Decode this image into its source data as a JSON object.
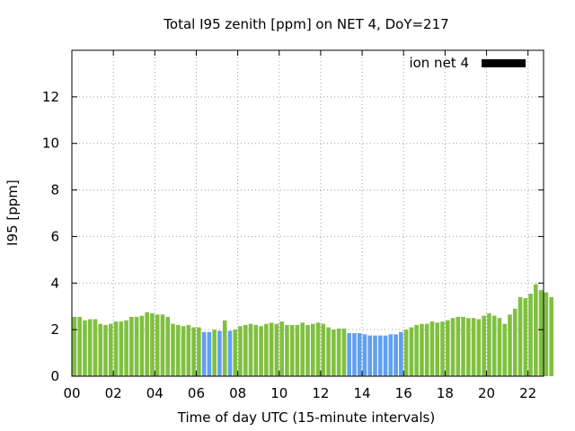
{
  "chart_data": {
    "type": "bar",
    "title": "Total I95 zenith [ppm] on NET 4, DoY=217",
    "xlabel": "Time of day UTC (15-minute intervals)",
    "ylabel": "I95 [ppm]",
    "interval_hours": 0.25,
    "xlim": [
      0,
      22.75
    ],
    "ylim": [
      0,
      14
    ],
    "x_ticks": [
      0,
      2,
      4,
      6,
      8,
      10,
      12,
      14,
      16,
      18,
      20,
      22
    ],
    "x_tick_labels": [
      "00",
      "02",
      "04",
      "06",
      "08",
      "10",
      "12",
      "14",
      "16",
      "18",
      "20",
      "22"
    ],
    "y_ticks": [
      0,
      2,
      4,
      6,
      8,
      10,
      12
    ],
    "y_tick_labels": [
      "0",
      "2",
      "4",
      "6",
      "8",
      "10",
      "12"
    ],
    "grid": true,
    "legend": {
      "label": "ion net 4",
      "placement": "top-right",
      "swatch_color": "#000000"
    },
    "colors": {
      "normal": "#80c040",
      "highlight": "#60a0ee"
    },
    "values": [
      2.55,
      2.55,
      2.4,
      2.45,
      2.45,
      2.25,
      2.2,
      2.25,
      2.35,
      2.35,
      2.4,
      2.55,
      2.55,
      2.6,
      2.75,
      2.7,
      2.65,
      2.65,
      2.55,
      2.25,
      2.2,
      2.15,
      2.2,
      2.1,
      2.1,
      1.9,
      1.9,
      2.0,
      1.95,
      2.4,
      1.95,
      2.0,
      2.15,
      2.2,
      2.25,
      2.2,
      2.15,
      2.25,
      2.3,
      2.25,
      2.35,
      2.2,
      2.2,
      2.2,
      2.3,
      2.2,
      2.25,
      2.3,
      2.25,
      2.1,
      2.0,
      2.05,
      2.05,
      1.85,
      1.85,
      1.85,
      1.8,
      1.75,
      1.75,
      1.75,
      1.75,
      1.8,
      1.8,
      1.9,
      2.0,
      2.1,
      2.2,
      2.25,
      2.25,
      2.35,
      2.3,
      2.35,
      2.4,
      2.5,
      2.55,
      2.55,
      2.5,
      2.5,
      2.45,
      2.6,
      2.7,
      2.6,
      2.5,
      2.25,
      2.65,
      2.9,
      3.4,
      3.35,
      3.55,
      3.95,
      3.7,
      3.6,
      3.4
    ],
    "highlight_flags": [
      0,
      0,
      0,
      0,
      0,
      0,
      0,
      0,
      0,
      0,
      0,
      0,
      0,
      0,
      0,
      0,
      0,
      0,
      0,
      0,
      0,
      0,
      0,
      0,
      0,
      1,
      1,
      0,
      1,
      0,
      1,
      0,
      0,
      0,
      0,
      0,
      0,
      0,
      0,
      0,
      0,
      0,
      0,
      0,
      0,
      0,
      0,
      0,
      0,
      0,
      0,
      0,
      0,
      1,
      1,
      1,
      1,
      1,
      1,
      1,
      1,
      1,
      1,
      1,
      0,
      0,
      0,
      0,
      0,
      0,
      0,
      0,
      0,
      0,
      0,
      0,
      0,
      0,
      0,
      0,
      0,
      0,
      0,
      0,
      0,
      0,
      0,
      0,
      0,
      0,
      0,
      0,
      0
    ]
  }
}
